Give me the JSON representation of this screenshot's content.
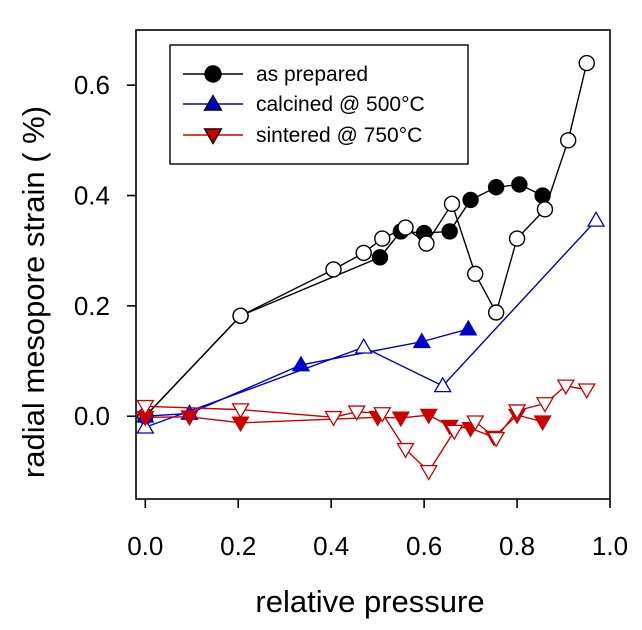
{
  "chart_data": {
    "type": "scatter",
    "xlabel": "relative pressure",
    "ylabel": "radial mesopore strain (   %)",
    "xlim": [
      -0.02,
      1.0
    ],
    "ylim": [
      -0.15,
      0.7
    ],
    "xticks": [
      "0.0",
      "0.2",
      "0.4",
      "0.6",
      "0.8",
      "1.0"
    ],
    "xtick_values": [
      0.0,
      0.2,
      0.4,
      0.6,
      0.8,
      1.0
    ],
    "yticks": [
      "0.0",
      "0.2",
      "0.4",
      "0.6"
    ],
    "ytick_values": [
      0.0,
      0.2,
      0.4,
      0.6
    ],
    "grid": false,
    "legend_position": "top-left",
    "series": [
      {
        "name": "as prepared",
        "color": "#000000",
        "marker": "circle",
        "adsorption": {
          "filled": true,
          "x": [
            0.0,
            0.205,
            0.505,
            0.55,
            0.6,
            0.655,
            0.7,
            0.755,
            0.805,
            0.855
          ],
          "y": [
            0.0,
            0.182,
            0.288,
            0.335,
            0.332,
            0.335,
            0.392,
            0.415,
            0.42,
            0.4
          ]
        },
        "desorption": {
          "filled": false,
          "x": [
            0.95,
            0.91,
            0.86,
            0.8,
            0.755,
            0.71,
            0.66,
            0.605,
            0.56,
            0.51,
            0.47,
            0.405,
            0.205,
            0.0
          ],
          "y": [
            0.64,
            0.5,
            0.375,
            0.322,
            0.188,
            0.258,
            0.385,
            0.313,
            0.342,
            0.322,
            0.296,
            0.266,
            0.182,
            0.0
          ]
        }
      },
      {
        "name": "calcined @ 500°C",
        "color": "#0000cc",
        "marker": "triangle-up",
        "adsorption": {
          "filled": true,
          "x": [
            0.0,
            0.095,
            0.335,
            0.595,
            0.695
          ],
          "y": [
            0.0,
            0.005,
            0.093,
            0.135,
            0.158
          ]
        },
        "desorption": {
          "filled": false,
          "x": [
            0.97,
            0.64,
            0.47,
            0.0
          ],
          "y": [
            0.355,
            0.055,
            0.125,
            -0.02
          ]
        }
      },
      {
        "name": "sintered @ 750°C",
        "color": "#cc0000",
        "marker": "triangle-down",
        "adsorption": {
          "filled": true,
          "x": [
            0.0,
            0.095,
            0.205,
            0.5,
            0.55,
            0.61,
            0.655,
            0.7,
            0.75,
            0.8,
            0.855
          ],
          "y": [
            -0.002,
            -0.001,
            -0.012,
            -0.002,
            -0.003,
            0.002,
            -0.018,
            -0.022,
            -0.038,
            0.002,
            -0.01
          ]
        },
        "desorption": {
          "filled": false,
          "x": [
            0.95,
            0.905,
            0.86,
            0.8,
            0.755,
            0.71,
            0.665,
            0.61,
            0.56,
            0.51,
            0.455,
            0.405,
            0.205,
            0.0
          ],
          "y": [
            0.048,
            0.055,
            0.023,
            0.01,
            -0.04,
            -0.01,
            -0.027,
            -0.1,
            -0.06,
            0.005,
            0.008,
            -0.002,
            0.012,
            0.018
          ]
        }
      }
    ]
  }
}
